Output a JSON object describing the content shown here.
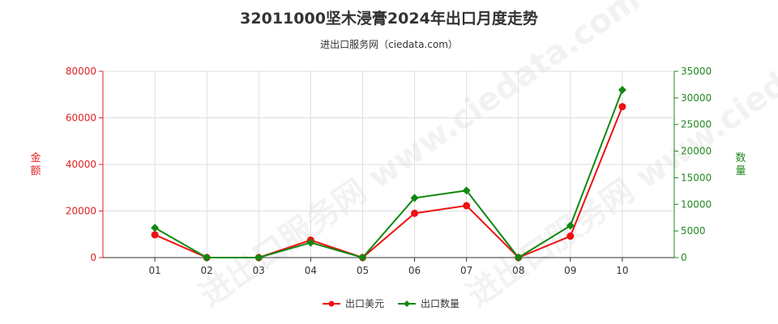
{
  "title": "32011000坚木浸膏2024年出口月度走势",
  "subtitle": "进出口服务网（ciedata.com）",
  "watermark": "进出口服务网 www.ciedata.com",
  "chart_data": {
    "type": "line",
    "categories": [
      "01",
      "02",
      "03",
      "04",
      "05",
      "06",
      "07",
      "08",
      "09",
      "10"
    ],
    "series": [
      {
        "name": "出口美元",
        "axis": "left",
        "color": "#ee1111",
        "marker": "circle",
        "values": [
          9800,
          0,
          0,
          7500,
          0,
          19000,
          22300,
          0,
          9200,
          64800
        ]
      },
      {
        "name": "出口数量",
        "axis": "right",
        "color": "#118811",
        "marker": "diamond",
        "values": [
          5600,
          0,
          0,
          2800,
          0,
          11200,
          12600,
          0,
          6000,
          31500
        ]
      }
    ],
    "y_left": {
      "label": "金额",
      "min": 0,
      "max": 80000,
      "ticks": [
        "0",
        "20000",
        "40000",
        "60000",
        "80000"
      ],
      "color": "#dd2222"
    },
    "y_right": {
      "label": "数量",
      "min": 0,
      "max": 35000,
      "ticks": [
        "0",
        "5000",
        "10000",
        "15000",
        "20000",
        "25000",
        "30000",
        "35000"
      ],
      "color": "#228822"
    },
    "grid": true,
    "legend_position": "bottom-center"
  }
}
